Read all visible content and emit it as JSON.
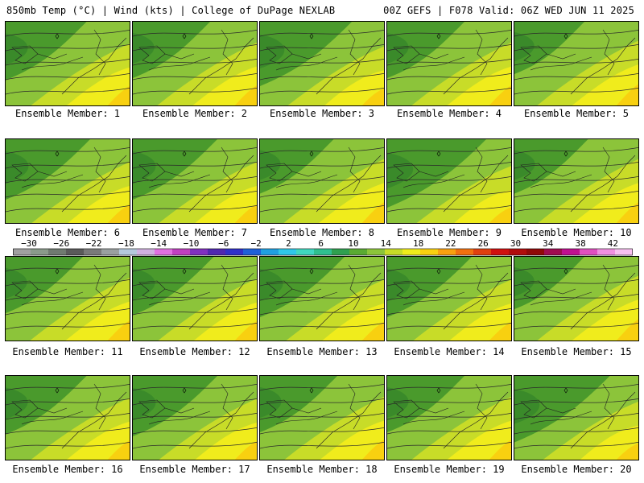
{
  "header": {
    "left": "850mb Temp (°C) | Wind (kts) | College of DuPage NEXLAB",
    "right": "00Z GEFS | F078 Valid: 06Z WED JUN 11 2025"
  },
  "panels": [
    {
      "label": "Ensemble Member: 1",
      "warmth": 0.55
    },
    {
      "label": "Ensemble Member: 2",
      "warmth": 0.6
    },
    {
      "label": "Ensemble Member: 3",
      "warmth": 0.4
    },
    {
      "label": "Ensemble Member: 4",
      "warmth": 0.6
    },
    {
      "label": "Ensemble Member: 5",
      "warmth": 0.7
    },
    {
      "label": "Ensemble Member: 6",
      "warmth": 0.5
    },
    {
      "label": "Ensemble Member: 7",
      "warmth": 0.5
    },
    {
      "label": "Ensemble Member: 8",
      "warmth": 0.65
    },
    {
      "label": "Ensemble Member: 9",
      "warmth": 0.3
    },
    {
      "label": "Ensemble Member: 10",
      "warmth": 0.65
    },
    {
      "label": "Ensemble Member: 11",
      "warmth": 0.6
    },
    {
      "label": "Ensemble Member: 12",
      "warmth": 0.55
    },
    {
      "label": "Ensemble Member: 13",
      "warmth": 0.5
    },
    {
      "label": "Ensemble Member: 14",
      "warmth": 0.5
    },
    {
      "label": "Ensemble Member: 15",
      "warmth": 0.7
    },
    {
      "label": "Ensemble Member: 16",
      "warmth": 0.55
    },
    {
      "label": "Ensemble Member: 17",
      "warmth": 0.5
    },
    {
      "label": "Ensemble Member: 18",
      "warmth": 0.6
    },
    {
      "label": "Ensemble Member: 19",
      "warmth": 0.6
    },
    {
      "label": "Ensemble Member: 20",
      "warmth": 0.35
    }
  ],
  "colorbar": {
    "tick_labels": [
      "−30",
      "−26",
      "−22",
      "−18",
      "−14",
      "−10",
      "−6",
      "−2",
      "2",
      "6",
      "10",
      "14",
      "18",
      "22",
      "26",
      "30",
      "34",
      "38",
      "42"
    ],
    "colors": [
      "#a0a0a0",
      "#8a9a8a",
      "#707a70",
      "#5a5a5a",
      "#7a7a7a",
      "#9aa0a0",
      "#b4c8dc",
      "#d0b0e0",
      "#e070e0",
      "#c040c0",
      "#8030c0",
      "#5028b0",
      "#3030c8",
      "#2060d8",
      "#20a0e0",
      "#30c8e8",
      "#40d8c0",
      "#30c090",
      "#30a050",
      "#5aaa32",
      "#8cc43a",
      "#c8dc28",
      "#f0ec1c",
      "#f8d010",
      "#f8a010",
      "#f07010",
      "#e04010",
      "#d01010",
      "#b00c0c",
      "#900808",
      "#a00c50",
      "#c01090",
      "#e050c0",
      "#f090e0",
      "#f8c0f0"
    ]
  }
}
